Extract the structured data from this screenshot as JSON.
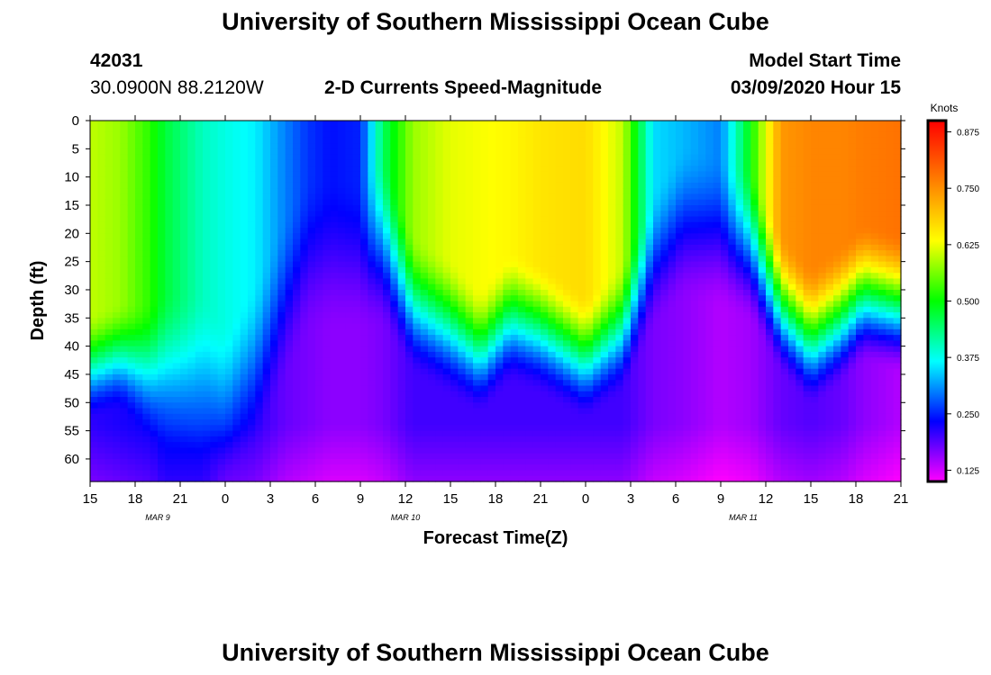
{
  "header": {
    "title": "University of Southern Mississippi Ocean Cube",
    "station_id": "42031",
    "coords": "30.0900N 88.2120W",
    "plot_title": "2-D Currents Speed-Magnitude",
    "model_start_label": "Model Start Time",
    "model_start_value": "03/09/2020 Hour 15"
  },
  "footer": {
    "title": "University of Southern Mississippi Ocean Cube"
  },
  "colors": {
    "scale": [
      "#ff00ff",
      "#0000ff",
      "#00ffff",
      "#00ff00",
      "#ffff00",
      "#ff7f00",
      "#ff0000"
    ]
  },
  "chart_data": {
    "type": "heatmap",
    "xlabel": "Forecast Time(Z)",
    "ylabel": "Depth (ft)",
    "colorbar_label": "Knots",
    "x_range_hours": [
      0,
      54
    ],
    "ylim": [
      0,
      64
    ],
    "y_ticks": [
      0,
      5,
      10,
      15,
      20,
      25,
      30,
      35,
      40,
      45,
      50,
      55,
      60
    ],
    "x_ticks": [
      {
        "hour": 0,
        "label": "15"
      },
      {
        "hour": 3,
        "label": "18"
      },
      {
        "hour": 6,
        "label": "21"
      },
      {
        "hour": 9,
        "label": "0"
      },
      {
        "hour": 12,
        "label": "3"
      },
      {
        "hour": 15,
        "label": "6"
      },
      {
        "hour": 18,
        "label": "9"
      },
      {
        "hour": 21,
        "label": "12"
      },
      {
        "hour": 24,
        "label": "15"
      },
      {
        "hour": 27,
        "label": "18"
      },
      {
        "hour": 30,
        "label": "21"
      },
      {
        "hour": 33,
        "label": "0"
      },
      {
        "hour": 36,
        "label": "3"
      },
      {
        "hour": 39,
        "label": "6"
      },
      {
        "hour": 42,
        "label": "9"
      },
      {
        "hour": 45,
        "label": "12"
      },
      {
        "hour": 48,
        "label": "15"
      },
      {
        "hour": 51,
        "label": "18"
      },
      {
        "hour": 54,
        "label": "21"
      }
    ],
    "date_labels": [
      {
        "hour": 4.5,
        "label": "MAR 9"
      },
      {
        "hour": 21,
        "label": "MAR 10"
      },
      {
        "hour": 43.5,
        "label": "MAR 11"
      }
    ],
    "colorbar_ticks": [
      "0.125",
      "0.250",
      "0.375",
      "0.500",
      "0.625",
      "0.750",
      "0.875"
    ],
    "colorbar_range": [
      0.1,
      0.9
    ],
    "profile_params": [
      {
        "hour": 0,
        "s": 0.6,
        "z": 48,
        "b": 0.21,
        "w": 14
      },
      {
        "hour": 2,
        "s": 0.58,
        "z": 46,
        "b": 0.22,
        "w": 14
      },
      {
        "hour": 4,
        "s": 0.52,
        "z": 50,
        "b": 0.23,
        "w": 18
      },
      {
        "hour": 5,
        "s": 0.47,
        "z": 50,
        "b": 0.25,
        "w": 20
      },
      {
        "hour": 7.5,
        "s": 0.4,
        "z": 52,
        "b": 0.25,
        "w": 22
      },
      {
        "hour": 9,
        "s": 0.38,
        "z": 56,
        "b": 0.22,
        "w": 20
      },
      {
        "hour": 11,
        "s": 0.36,
        "z": 50,
        "b": 0.21,
        "w": 22
      },
      {
        "hour": 13,
        "s": 0.3,
        "z": 38,
        "b": 0.18,
        "w": 22
      },
      {
        "hour": 14.5,
        "s": 0.26,
        "z": 30,
        "b": 0.17,
        "w": 20
      },
      {
        "hour": 16,
        "s": 0.24,
        "z": 30,
        "b": 0.16,
        "w": 20
      },
      {
        "hour": 18,
        "s": 0.25,
        "z": 30,
        "b": 0.16,
        "w": 20
      },
      {
        "hour": 19.5,
        "s": 0.45,
        "z": 28,
        "b": 0.17,
        "w": 22
      },
      {
        "hour": 21.5,
        "s": 0.58,
        "z": 38,
        "b": 0.2,
        "w": 18
      },
      {
        "hour": 24,
        "s": 0.62,
        "z": 42,
        "b": 0.2,
        "w": 18
      },
      {
        "hour": 26,
        "s": 0.63,
        "z": 46,
        "b": 0.2,
        "w": 16
      },
      {
        "hour": 28,
        "s": 0.64,
        "z": 40,
        "b": 0.2,
        "w": 17
      },
      {
        "hour": 30,
        "s": 0.66,
        "z": 42,
        "b": 0.2,
        "w": 17
      },
      {
        "hour": 33,
        "s": 0.67,
        "z": 47,
        "b": 0.2,
        "w": 16
      },
      {
        "hour": 35.5,
        "s": 0.6,
        "z": 42,
        "b": 0.2,
        "w": 17
      },
      {
        "hour": 37.5,
        "s": 0.35,
        "z": 30,
        "b": 0.17,
        "w": 18
      },
      {
        "hour": 39.5,
        "s": 0.33,
        "z": 24,
        "b": 0.16,
        "w": 20
      },
      {
        "hour": 42,
        "s": 0.3,
        "z": 26,
        "b": 0.14,
        "w": 20
      },
      {
        "hour": 44,
        "s": 0.5,
        "z": 28,
        "b": 0.15,
        "w": 20
      },
      {
        "hour": 46,
        "s": 0.74,
        "z": 38,
        "b": 0.18,
        "w": 18
      },
      {
        "hour": 48,
        "s": 0.76,
        "z": 44,
        "b": 0.19,
        "w": 18
      },
      {
        "hour": 50,
        "s": 0.76,
        "z": 40,
        "b": 0.18,
        "w": 18
      },
      {
        "hour": 51.5,
        "s": 0.77,
        "z": 36,
        "b": 0.16,
        "w": 18
      },
      {
        "hour": 54,
        "s": 0.78,
        "z": 38,
        "b": 0.14,
        "w": 18
      }
    ]
  }
}
